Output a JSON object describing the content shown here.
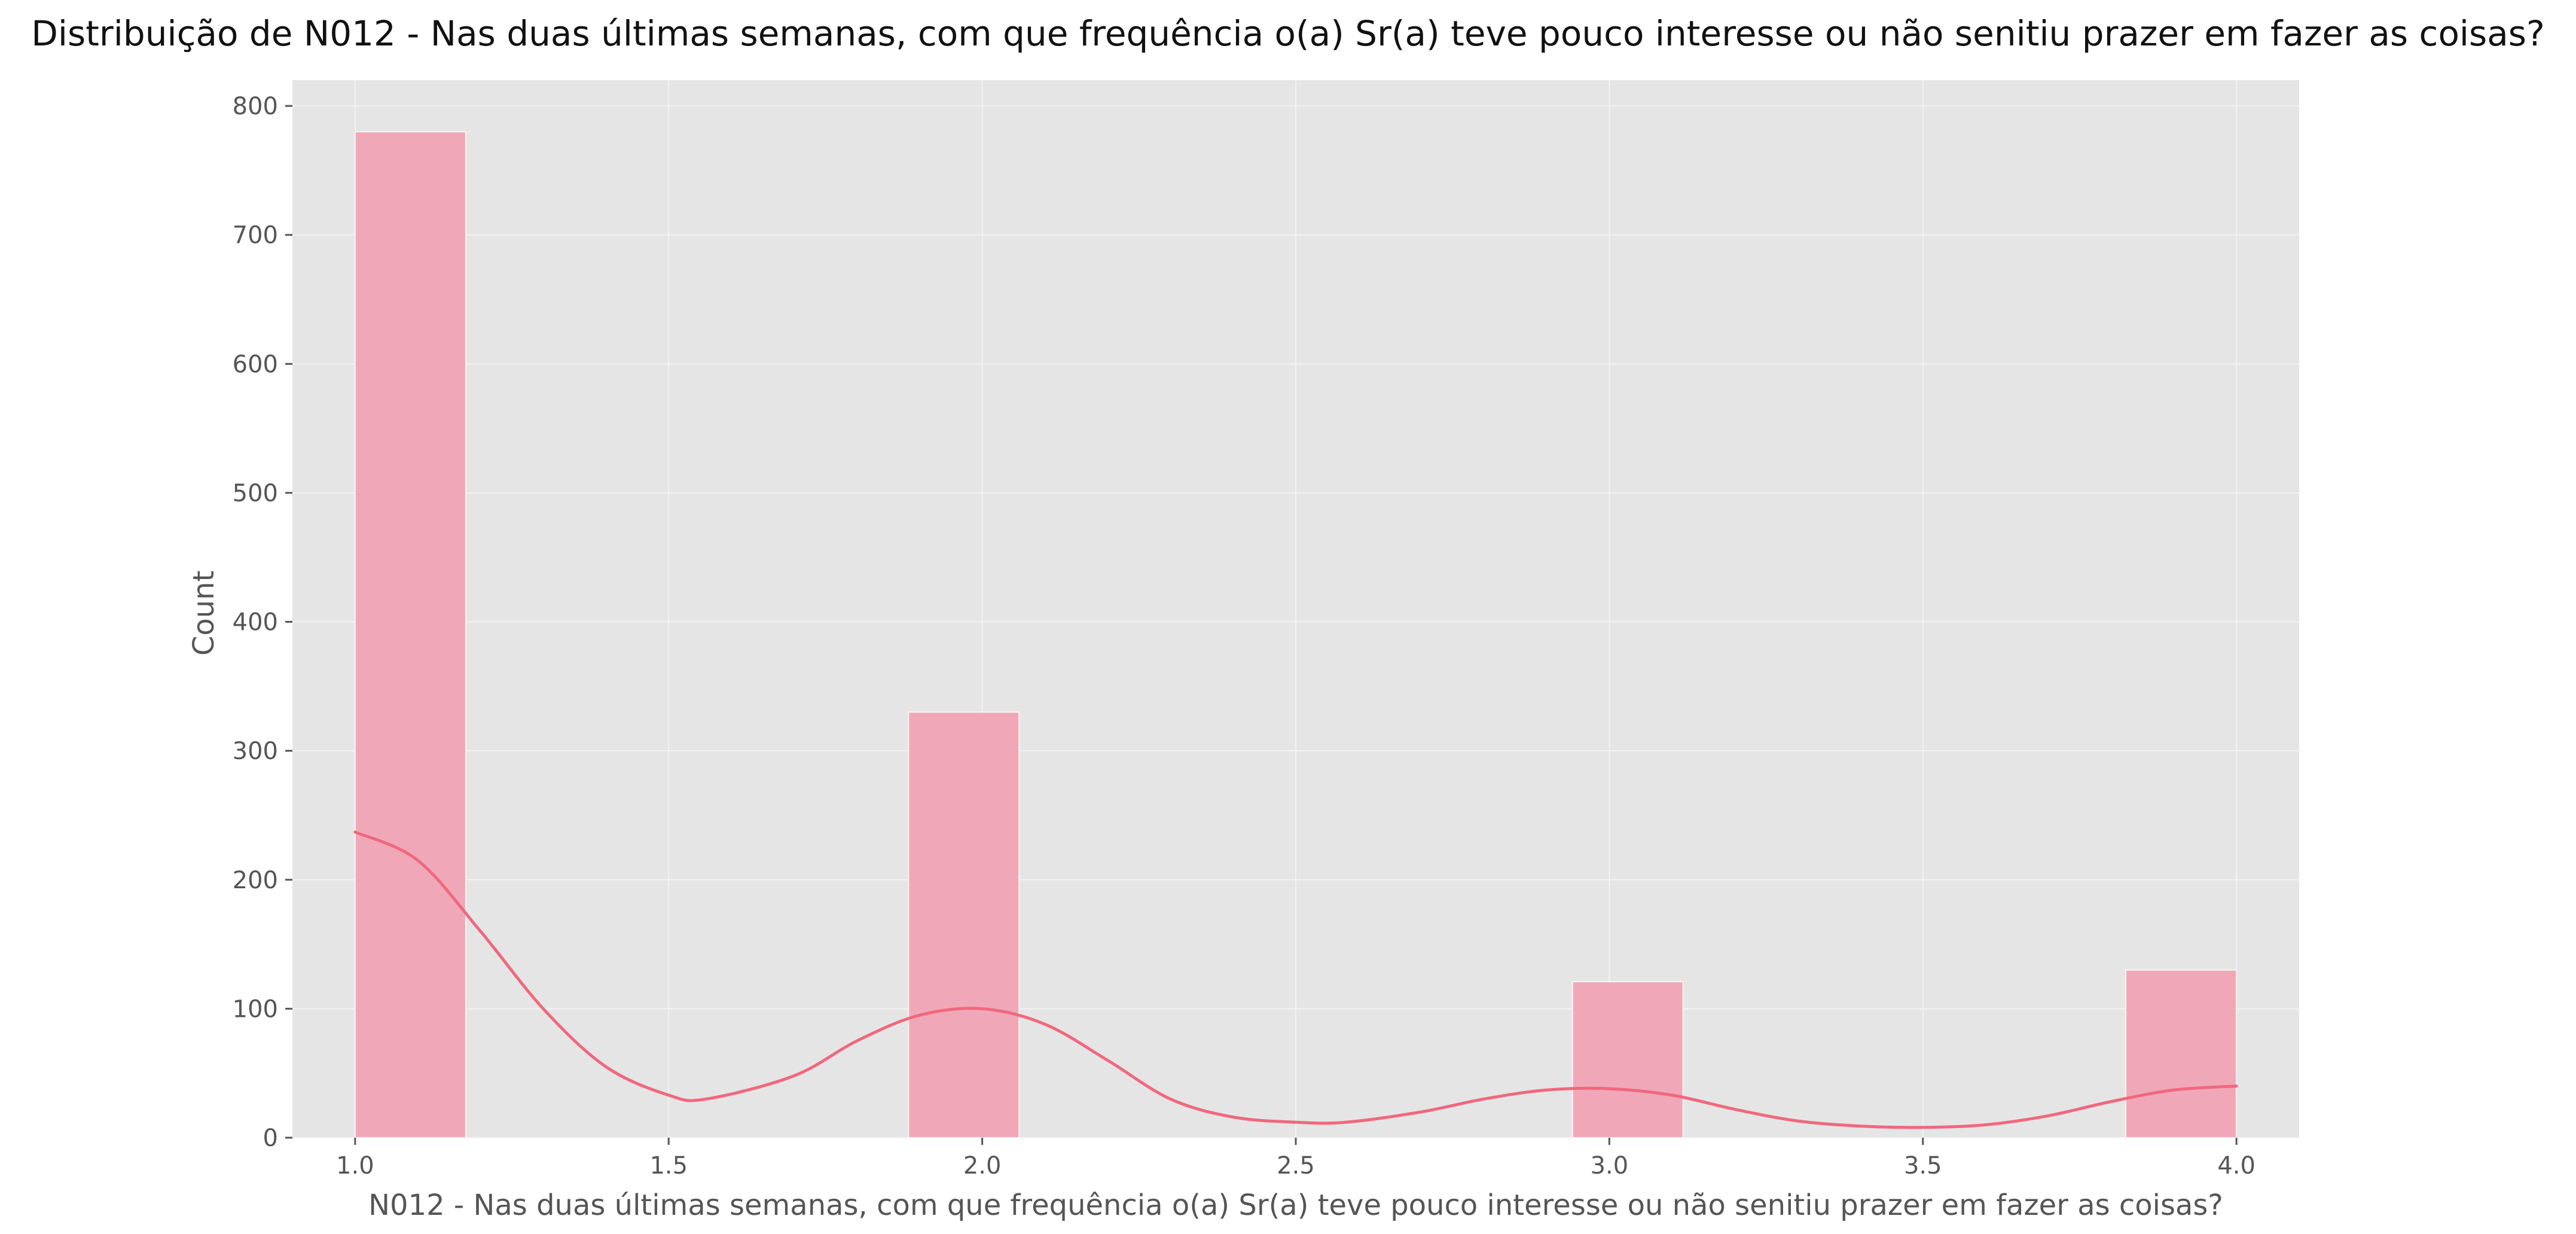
{
  "chart_data": {
    "type": "bar",
    "title": "Distribuição de N012 - Nas duas últimas semanas, com que frequência o(a) Sr(a) teve pouco interesse ou não senitiu prazer em fazer as coisas?",
    "xlabel": "N012 - Nas duas últimas semanas, com que frequência o(a) Sr(a) teve pouco interesse ou não senitiu prazer em fazer as coisas?",
    "ylabel": "Count",
    "xlim": [
      0.9,
      4.1
    ],
    "ylim": [
      0,
      820
    ],
    "x_ticks": [
      1.0,
      1.5,
      2.0,
      2.5,
      3.0,
      3.5,
      4.0
    ],
    "x_tick_labels": [
      "1.0",
      "1.5",
      "2.0",
      "2.5",
      "3.0",
      "3.5",
      "4.0"
    ],
    "y_ticks": [
      0,
      100,
      200,
      300,
      400,
      500,
      600,
      700,
      800
    ],
    "y_tick_labels": [
      "0",
      "100",
      "200",
      "300",
      "400",
      "500",
      "600",
      "700",
      "800"
    ],
    "bins": [
      {
        "x_start": 1.0,
        "x_end": 1.1765,
        "count": 780
      },
      {
        "x_start": 1.8824,
        "x_end": 2.0588,
        "count": 330
      },
      {
        "x_start": 2.9412,
        "x_end": 3.1176,
        "count": 121
      },
      {
        "x_start": 3.8235,
        "x_end": 4.0,
        "count": 130
      }
    ],
    "kde": {
      "x": [
        1.0,
        1.1,
        1.2,
        1.3,
        1.4,
        1.5,
        1.56,
        1.7,
        1.8,
        1.9,
        2.0,
        2.1,
        2.2,
        2.3,
        2.4,
        2.5,
        2.58,
        2.7,
        2.8,
        2.9,
        3.0,
        3.1,
        3.2,
        3.3,
        3.4,
        3.5,
        3.6,
        3.7,
        3.8,
        3.9,
        4.0
      ],
      "y": [
        237,
        215,
        160,
        100,
        55,
        33,
        30,
        48,
        75,
        95,
        100,
        88,
        60,
        30,
        16,
        12,
        12,
        20,
        30,
        37,
        38,
        33,
        22,
        13,
        9,
        8,
        10,
        17,
        28,
        37,
        40
      ]
    },
    "grid": true,
    "colors": {
      "background": "#e5e5e5",
      "bar_fill": "#f0a8b8",
      "kde_line": "#f0687e"
    }
  }
}
